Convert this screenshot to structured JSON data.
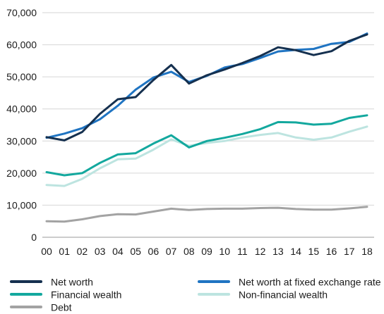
{
  "chart_data": {
    "type": "line",
    "categories": [
      "00",
      "01",
      "02",
      "03",
      "04",
      "05",
      "06",
      "07",
      "08",
      "09",
      "10",
      "11",
      "12",
      "13",
      "14",
      "15",
      "16",
      "17",
      "18"
    ],
    "ylim": [
      0,
      70000
    ],
    "yticks": [
      "0",
      "10,000",
      "20,000",
      "30,000",
      "40,000",
      "50,000",
      "60,000",
      "70,000"
    ],
    "ytick_values": [
      0,
      10000,
      20000,
      30000,
      40000,
      50000,
      60000,
      70000
    ],
    "grid": true,
    "legend_placement": "bottom",
    "series": [
      {
        "name": "Net worth",
        "color": "#15304f",
        "values": [
          31200,
          30200,
          32800,
          38500,
          43000,
          43700,
          49000,
          53700,
          47900,
          50500,
          52300,
          54300,
          56500,
          59200,
          58300,
          56800,
          58000,
          61200,
          63200
        ]
      },
      {
        "name": "Net worth at fixed exchange rate",
        "color": "#1f74c2",
        "values": [
          31000,
          32300,
          34000,
          36800,
          41000,
          46000,
          49800,
          51600,
          48400,
          50300,
          52900,
          54000,
          55900,
          57900,
          58400,
          58700,
          60300,
          60900,
          63500
        ]
      },
      {
        "name": "Financial wealth",
        "color": "#13a89e",
        "values": [
          20300,
          19300,
          20000,
          23200,
          25800,
          26200,
          29200,
          31800,
          28000,
          30000,
          31000,
          32200,
          33700,
          35900,
          35800,
          35100,
          35400,
          37200,
          38000
        ]
      },
      {
        "name": "Non-financial wealth",
        "color": "#bde4e0",
        "values": [
          16300,
          16000,
          18200,
          21500,
          24300,
          24500,
          27300,
          30500,
          28500,
          29400,
          30000,
          31100,
          31900,
          32500,
          31100,
          30400,
          31100,
          32900,
          34500
        ]
      },
      {
        "name": "Debt",
        "color": "#a3a3a3",
        "values": [
          5000,
          4900,
          5600,
          6600,
          7200,
          7100,
          8000,
          8900,
          8500,
          8800,
          8900,
          8900,
          9100,
          9200,
          8800,
          8600,
          8600,
          9000,
          9500
        ]
      }
    ]
  }
}
